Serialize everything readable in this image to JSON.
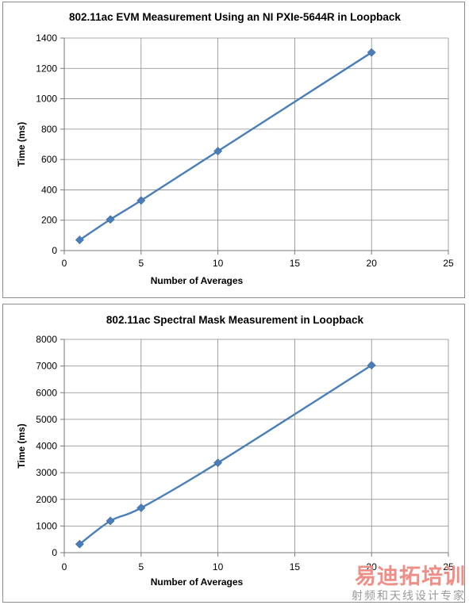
{
  "chart_data": [
    {
      "type": "line",
      "title": "802.11ac EVM Measurement Using an NI PXIe-5644R in Loopback",
      "xlabel": "Number of Averages",
      "ylabel": "Time (ms)",
      "xlim": [
        0,
        25
      ],
      "ylim": [
        0,
        1400
      ],
      "xticks": [
        0,
        5,
        10,
        15,
        20,
        25
      ],
      "yticks": [
        0,
        200,
        400,
        600,
        800,
        1000,
        1200,
        1400
      ],
      "grid": true,
      "legend": "none",
      "series": [
        {
          "x": [
            1,
            3,
            5,
            10,
            20
          ],
          "y": [
            70,
            205,
            330,
            655,
            1305
          ],
          "color": "#4a7ebb"
        }
      ]
    },
    {
      "type": "line",
      "title": "802.11ac Spectral Mask Measurement in Loopback",
      "xlabel": "Number of Averages",
      "ylabel": "Time (ms)",
      "xlim": [
        0,
        25
      ],
      "ylim": [
        0,
        8000
      ],
      "xticks": [
        0,
        5,
        10,
        15,
        20,
        25
      ],
      "yticks": [
        0,
        1000,
        2000,
        3000,
        4000,
        5000,
        6000,
        7000,
        8000
      ],
      "grid": true,
      "legend": "none",
      "series": [
        {
          "x": [
            1,
            3,
            5,
            10,
            20
          ],
          "y": [
            320,
            1190,
            1680,
            3370,
            7030
          ],
          "color": "#4a7ebb"
        }
      ]
    }
  ],
  "watermark": {
    "main": "易迪拓培训",
    "sub": "射频和天线设计专家"
  }
}
